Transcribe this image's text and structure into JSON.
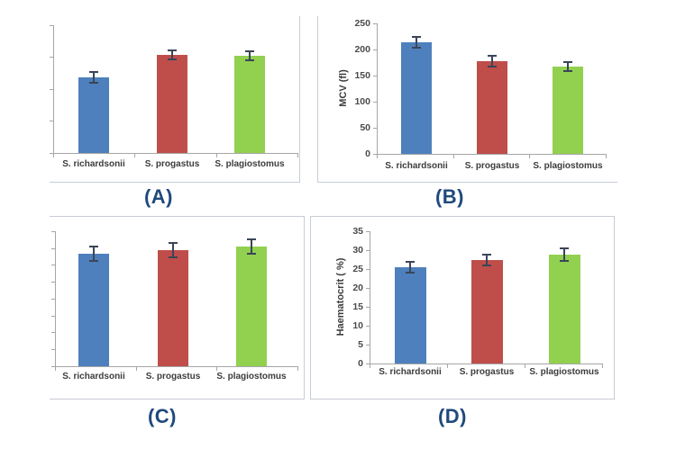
{
  "figure": {
    "categories": [
      "S. richardsonii",
      "S. progastus",
      "S. plagiostomus"
    ],
    "bar_colors": [
      "#4D80BC",
      "#BF4E4B",
      "#92D050"
    ],
    "panels": [
      {
        "id": "A",
        "label": "(A)",
        "chart_data": {
          "type": "bar",
          "categories": [
            "S. richardsonii",
            "S. progastus",
            "S. plagiostomus"
          ],
          "values_fraction_of_axis": [
            0.59,
            0.77,
            0.76
          ],
          "errors_fraction_of_axis": [
            0.042,
            0.038,
            0.038
          ],
          "bar_colors": [
            "#4D80BC",
            "#BF4E4B",
            "#92D050"
          ],
          "ylabel": "",
          "ylim": null,
          "yticks": [],
          "ytick_count": 5,
          "grid": false,
          "legend": false
        }
      },
      {
        "id": "B",
        "label": "(B)",
        "chart_data": {
          "type": "bar",
          "categories": [
            "S. richardsonii",
            "S. progastus",
            "S. plagiostomus"
          ],
          "values": [
            213,
            178,
            168
          ],
          "errors": [
            10,
            10,
            8
          ],
          "bar_colors": [
            "#4D80BC",
            "#BF4E4B",
            "#92D050"
          ],
          "ylabel": "MCV (fl)",
          "ylim": [
            0,
            250
          ],
          "yticks": [
            0,
            50,
            100,
            150,
            200,
            250
          ],
          "grid": false,
          "legend": false
        }
      },
      {
        "id": "C",
        "label": "(C)",
        "chart_data": {
          "type": "bar",
          "categories": [
            "S. richardsonii",
            "S. progastus",
            "S. plagiostomus"
          ],
          "values_fraction_of_axis": [
            0.833,
            0.86,
            0.887
          ],
          "errors_fraction_of_axis": [
            0.05,
            0.055,
            0.055
          ],
          "bar_colors": [
            "#4D80BC",
            "#BF4E4B",
            "#92D050"
          ],
          "ylabel": "",
          "ylim": null,
          "yticks": [],
          "ytick_count": 9,
          "grid": false,
          "legend": false
        }
      },
      {
        "id": "D",
        "label": "(D)",
        "chart_data": {
          "type": "bar",
          "categories": [
            "S. richardsonii",
            "S. progastus",
            "S. plagiostomus"
          ],
          "values": [
            25.4,
            27.4,
            28.9
          ],
          "errors": [
            1.4,
            1.4,
            1.6
          ],
          "bar_colors": [
            "#4D80BC",
            "#BF4E4B",
            "#92D050"
          ],
          "ylabel": "Haematocrit ( %)",
          "ylim": [
            0,
            35
          ],
          "yticks": [
            0,
            5,
            10,
            15,
            20,
            25,
            30,
            35
          ],
          "grid": false,
          "legend": false
        }
      }
    ]
  },
  "colors": {
    "bar_blue": "#4D80BC",
    "bar_red": "#BF4E4B",
    "bar_green": "#92D050",
    "panel_label": "#1F497D",
    "axis": "#A6A6A6",
    "panel_border": "#C7CCD6",
    "tick_text": "#4A4A4A",
    "category_text": "#3C3C3C",
    "error_bar": "#3A4558",
    "background": "#FFFFFF"
  }
}
